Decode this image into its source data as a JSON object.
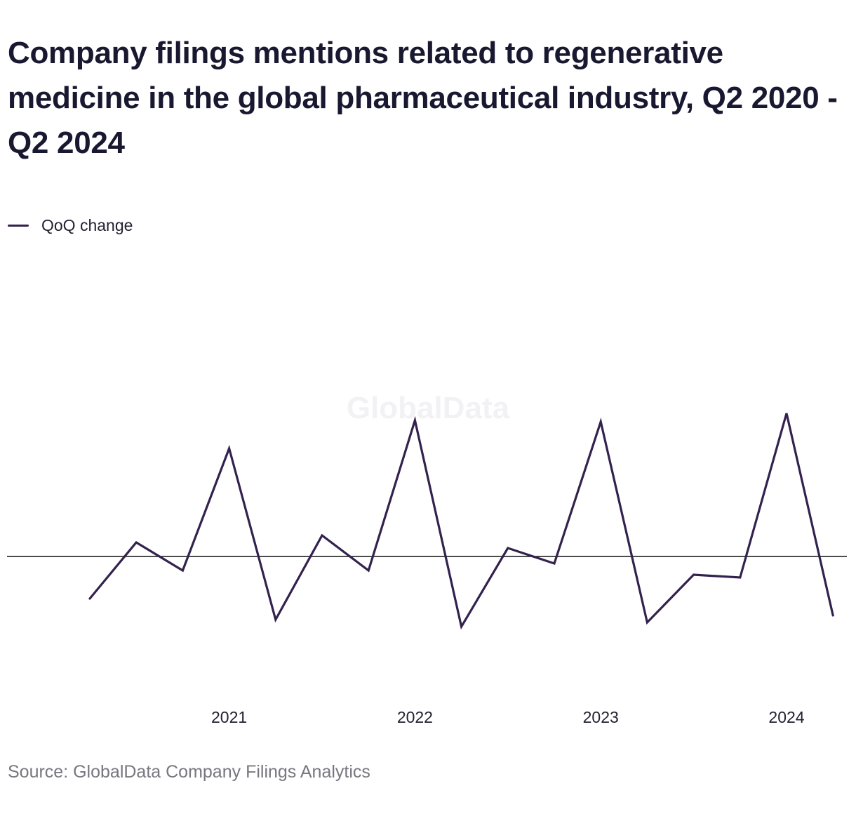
{
  "chart_data": {
    "type": "line",
    "title": "Company filings mentions related to regenerative medicine in the global pharmaceutical industry, Q2 2020 - Q2 2024",
    "xlabel": "",
    "ylabel": "",
    "x": [
      "Q2 2020",
      "Q3 2020",
      "Q4 2020",
      "Q1 2021",
      "Q2 2021",
      "Q3 2021",
      "Q4 2021",
      "Q1 2022",
      "Q2 2022",
      "Q3 2022",
      "Q4 2022",
      "Q1 2023",
      "Q2 2023",
      "Q3 2023",
      "Q4 2023",
      "Q1 2024",
      "Q2 2024"
    ],
    "x_tick_labels": [
      "2021",
      "2022",
      "2023",
      "2024"
    ],
    "x_tick_positions": [
      "Q1 2021",
      "Q1 2022",
      "Q1 2023",
      "Q1 2024"
    ],
    "series": [
      {
        "name": "QoQ change",
        "color": "#33224d",
        "values": [
          -30,
          10,
          -10,
          77,
          -45,
          15,
          -10,
          97,
          -50,
          6,
          -5,
          96,
          -47,
          -13,
          -15,
          102,
          -42
        ]
      }
    ],
    "zero_line": true,
    "ylim": [
      -60,
      110
    ],
    "grid": false,
    "legend_position": "top-left"
  },
  "watermark": "GlobalData",
  "source": "Source: GlobalData Company Filings Analytics"
}
